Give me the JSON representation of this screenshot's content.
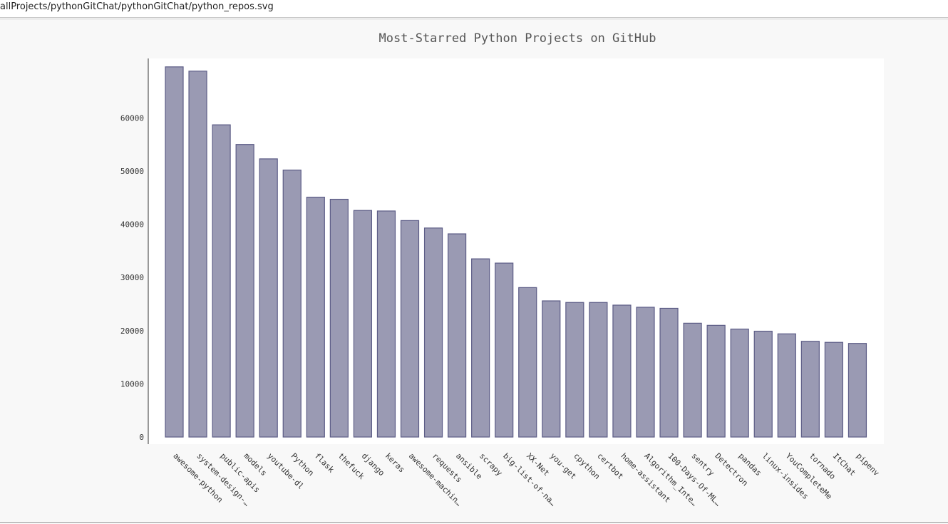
{
  "window": {
    "path": "allProjects/pythonGitChat/pythonGitChat/python_repos.svg"
  },
  "colors": {
    "bar_fill": "#9a9ab3",
    "bar_stroke": "#5c5c86",
    "plot_bg": "#ffffff",
    "axis": "#333333"
  },
  "chart_data": {
    "type": "bar",
    "title": "Most-Starred Python Projects on GitHub",
    "xlabel": "",
    "ylabel": "",
    "ylim": [
      0,
      70000
    ],
    "yticks": [
      0,
      10000,
      20000,
      30000,
      40000,
      50000,
      60000
    ],
    "grid": false,
    "legend": "none",
    "categories": [
      "awesome-python",
      "system-design-…",
      "public-apis",
      "models",
      "youtube-dl",
      "Python",
      "flask",
      "thefuck",
      "django",
      "keras",
      "awesome-machin…",
      "requests",
      "ansible",
      "scrapy",
      "big-list-of-na…",
      "XX-Net",
      "you-get",
      "cpython",
      "certbot",
      "home-assistant",
      "Algorithm_Inte…",
      "100-Days-Of-ML…",
      "sentry",
      "Detectron",
      "pandas",
      "linux-insides",
      "YouCompleteMe",
      "tornado",
      "ItChat",
      "pipenv"
    ],
    "values": [
      69600,
      68800,
      58700,
      55000,
      52300,
      50200,
      45100,
      44700,
      42600,
      42500,
      40700,
      39300,
      38200,
      33500,
      32700,
      28100,
      25600,
      25300,
      25300,
      24800,
      24400,
      24200,
      21400,
      21000,
      20300,
      19900,
      19400,
      18000,
      17800,
      17600
    ]
  }
}
